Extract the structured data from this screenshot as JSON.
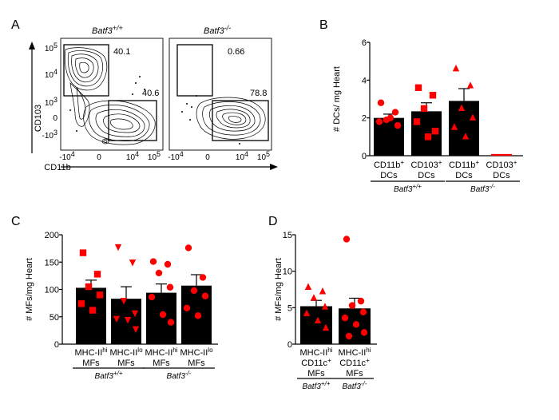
{
  "panels": {
    "A": "A",
    "B": "B",
    "C": "C",
    "D": "D"
  },
  "panel_a": {
    "plot_left_title": "Batf3",
    "plot_left_title_sup": "+/+",
    "plot_right_title": "Batf3",
    "plot_right_title_sup": "-/-",
    "y_label": "CD103",
    "x_label": "CD11b",
    "y_ticks": [
      {
        "base": "10",
        "exp": "5"
      },
      {
        "base": "10",
        "exp": "4"
      },
      {
        "base": "10",
        "exp": "3"
      },
      {
        "base": "0",
        "exp": ""
      },
      {
        "base": "-10",
        "exp": "3"
      }
    ],
    "x_ticks": [
      {
        "base": "-10",
        "exp": "4"
      },
      {
        "base": "0",
        "exp": ""
      },
      {
        "base": "10",
        "exp": "4"
      },
      {
        "base": "10",
        "exp": "5"
      }
    ],
    "left_gate_top": "40.1",
    "left_gate_bottom": "40.6",
    "right_gate_top": "0.66",
    "right_gate_bottom": "78.8"
  },
  "chart_data": [
    {
      "id": "B",
      "type": "bar",
      "ylabel": "# DCs/ mg Heart",
      "ylim": [
        0,
        6
      ],
      "yticks": [
        0,
        2,
        4,
        6
      ],
      "categories": [
        {
          "name": "CD11b",
          "sup": "+",
          "line2": "DCs",
          "genotype": "Batf3+/+",
          "marker": "circle"
        },
        {
          "name": "CD103",
          "sup": "+",
          "line2": "DCs",
          "genotype": "Batf3+/+",
          "marker": "square"
        },
        {
          "name": "CD11b",
          "sup": "+",
          "line2": "DCs",
          "genotype": "Batf3-/-",
          "marker": "triangle"
        },
        {
          "name": "CD103",
          "sup": "+",
          "line2": "DCs",
          "genotype": "Batf3-/-",
          "marker": "none"
        }
      ],
      "values": [
        2.0,
        2.35,
        2.9,
        0.05
      ],
      "sem": [
        0.2,
        0.45,
        0.65,
        0
      ],
      "points": [
        [
          2.8,
          2.3,
          1.9,
          1.6,
          1.8,
          2.0
        ],
        [
          3.6,
          3.2,
          2.5,
          1.3,
          1.8,
          1.0
        ],
        [
          4.6,
          3.7,
          2.5,
          2.0,
          1.5,
          1.0
        ],
        []
      ],
      "groups": [
        {
          "label": "Batf3",
          "sup": "+/+",
          "from": 0,
          "to": 1
        },
        {
          "label": "Batf3",
          "sup": "-/-",
          "from": 2,
          "to": 3
        }
      ]
    },
    {
      "id": "C",
      "type": "bar",
      "ylabel": "# MFs/mg Heart",
      "ylim": [
        0,
        200
      ],
      "yticks": [
        0,
        50,
        100,
        150,
        200
      ],
      "categories": [
        {
          "name": "MHC-II",
          "sup": "hi",
          "line2": "MFs",
          "marker": "square"
        },
        {
          "name": "MHC-II",
          "sup": "lo",
          "line2": "MFs",
          "marker": "triangle-down"
        },
        {
          "name": "MHC-II",
          "sup": "hi",
          "line2": "MFs",
          "marker": "circle"
        },
        {
          "name": "MHC-II",
          "sup": "lo",
          "line2": "MFs",
          "marker": "circle"
        }
      ],
      "values": [
        103,
        83,
        94,
        107
      ],
      "sem": [
        14,
        22,
        16,
        20
      ],
      "points": [
        [
          167,
          128,
          105,
          90,
          74,
          62
        ],
        [
          178,
          150,
          80,
          57,
          47,
          45,
          28
        ],
        [
          151,
          146,
          130,
          104,
          86,
          54,
          40
        ],
        [
          176,
          122,
          98,
          88,
          66,
          52
        ]
      ],
      "groups": [
        {
          "label": "Batf3",
          "sup": "+/+",
          "from": 0,
          "to": 1
        },
        {
          "label": "Batf3",
          "sup": "-/-",
          "from": 2,
          "to": 3
        }
      ]
    },
    {
      "id": "D",
      "type": "bar",
      "ylabel": "# MFs/mg Heart",
      "ylim": [
        0,
        15
      ],
      "yticks": [
        0,
        5,
        10,
        15
      ],
      "categories": [
        {
          "name": "MHC-II",
          "sup": "hi",
          "line2": "CD11c",
          "sup2": "+",
          "line3": "MFs",
          "genotype": "Batf3+/+",
          "marker": "triangle"
        },
        {
          "name": "MHC-II",
          "sup": "hi",
          "line2": "CD11c",
          "sup2": "+",
          "line3": "MFs",
          "genotype": "Batf3-/-",
          "marker": "circle"
        }
      ],
      "values": [
        5.2,
        4.9
      ],
      "sem": [
        0.8,
        1.4
      ],
      "points": [
        [
          7.8,
          7.2,
          6.3,
          5.1,
          4.2,
          3.2,
          2.2
        ],
        [
          14.4,
          5.9,
          5.3,
          4.4,
          3.6,
          2.7,
          1.6,
          1.1
        ]
      ],
      "groups": [
        {
          "label": "Batf3",
          "sup": "+/+",
          "from": 0,
          "to": 0
        },
        {
          "label": "Batf3",
          "sup": "-/-",
          "from": 1,
          "to": 1
        }
      ]
    }
  ],
  "colors": {
    "point": "#ff0000",
    "bar": "#000000"
  }
}
